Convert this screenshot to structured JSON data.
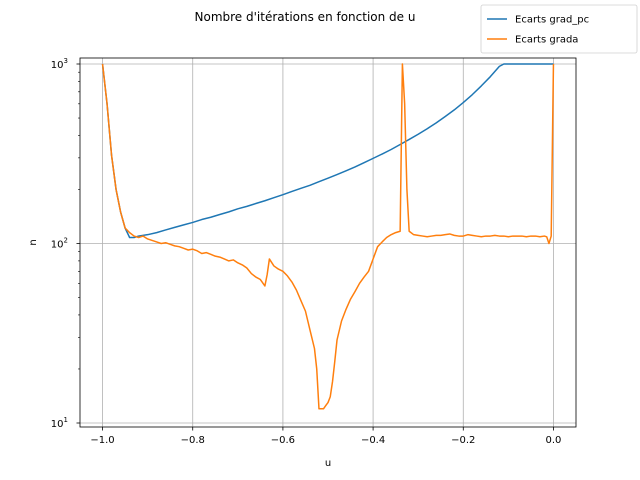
{
  "chart_data": {
    "type": "line",
    "title": "Nombre d'itérations en fonction de u",
    "xlabel": "u",
    "ylabel": "n",
    "xlim": [
      -1.05,
      0.05
    ],
    "ylim": [
      9.5,
      1080
    ],
    "yscale": "log",
    "grid": true,
    "legend_position": "top-right",
    "x_ticks": [
      -1.0,
      -0.8,
      -0.6,
      -0.4,
      -0.2,
      0.0
    ],
    "x_tick_labels": [
      "−1.0",
      "−0.8",
      "−0.6",
      "−0.4",
      "−0.2",
      "0.0"
    ],
    "y_ticks": [
      10,
      100,
      1000
    ],
    "y_tick_labels": [
      "10¹",
      "10²",
      "10³"
    ],
    "series": [
      {
        "name": "Ecarts grad_pc",
        "color": "#1f77b4",
        "x": [
          -1.0,
          -0.99,
          -0.98,
          -0.97,
          -0.96,
          -0.95,
          -0.94,
          -0.93,
          -0.92,
          -0.9,
          -0.88,
          -0.86,
          -0.84,
          -0.82,
          -0.8,
          -0.78,
          -0.76,
          -0.74,
          -0.72,
          -0.7,
          -0.68,
          -0.66,
          -0.64,
          -0.62,
          -0.6,
          -0.58,
          -0.56,
          -0.54,
          -0.52,
          -0.5,
          -0.48,
          -0.46,
          -0.44,
          -0.42,
          -0.4,
          -0.38,
          -0.36,
          -0.34,
          -0.32,
          -0.3,
          -0.28,
          -0.26,
          -0.24,
          -0.22,
          -0.2,
          -0.18,
          -0.16,
          -0.14,
          -0.12,
          -0.11,
          -0.1,
          -0.09,
          -0.08,
          -0.06,
          -0.04,
          -0.02,
          0.0
        ],
        "y": [
          1000,
          600,
          310,
          200,
          150,
          122,
          108,
          108,
          110,
          112,
          115,
          119,
          123,
          127,
          131,
          136,
          140,
          145,
          150,
          156,
          161,
          167,
          173,
          180,
          187,
          195,
          203,
          211,
          221,
          231,
          242,
          254,
          267,
          282,
          298,
          315,
          334,
          356,
          380,
          406,
          436,
          470,
          510,
          555,
          610,
          675,
          755,
          850,
          970,
          1000,
          1000,
          1000,
          1000,
          1000,
          1000,
          1000,
          1000
        ]
      },
      {
        "name": "Ecarts grada",
        "color": "#ff7f0e",
        "x": [
          -1.0,
          -0.99,
          -0.98,
          -0.97,
          -0.96,
          -0.95,
          -0.94,
          -0.93,
          -0.92,
          -0.91,
          -0.9,
          -0.89,
          -0.88,
          -0.87,
          -0.86,
          -0.85,
          -0.84,
          -0.83,
          -0.82,
          -0.81,
          -0.8,
          -0.79,
          -0.78,
          -0.77,
          -0.76,
          -0.75,
          -0.74,
          -0.73,
          -0.72,
          -0.71,
          -0.7,
          -0.69,
          -0.68,
          -0.67,
          -0.66,
          -0.65,
          -0.64,
          -0.635,
          -0.63,
          -0.62,
          -0.61,
          -0.6,
          -0.59,
          -0.58,
          -0.57,
          -0.56,
          -0.55,
          -0.54,
          -0.53,
          -0.525,
          -0.52,
          -0.515,
          -0.51,
          -0.505,
          -0.5,
          -0.495,
          -0.49,
          -0.485,
          -0.48,
          -0.47,
          -0.46,
          -0.45,
          -0.44,
          -0.43,
          -0.42,
          -0.41,
          -0.4,
          -0.39,
          -0.38,
          -0.37,
          -0.36,
          -0.35,
          -0.34,
          -0.335,
          -0.33,
          -0.325,
          -0.32,
          -0.31,
          -0.3,
          -0.29,
          -0.28,
          -0.27,
          -0.26,
          -0.25,
          -0.24,
          -0.23,
          -0.22,
          -0.21,
          -0.2,
          -0.19,
          -0.18,
          -0.17,
          -0.16,
          -0.15,
          -0.14,
          -0.13,
          -0.12,
          -0.11,
          -0.1,
          -0.09,
          -0.08,
          -0.07,
          -0.06,
          -0.05,
          -0.04,
          -0.03,
          -0.02,
          -0.015,
          -0.01,
          -0.005,
          0.0
        ],
        "y": [
          1000,
          600,
          310,
          200,
          150,
          122,
          115,
          110,
          108,
          110,
          106,
          104,
          102,
          100,
          101,
          99,
          97,
          96,
          94,
          92,
          93,
          91,
          88,
          89,
          87,
          85,
          84,
          82,
          80,
          81,
          78,
          76,
          73,
          68,
          65,
          63,
          58,
          67,
          82,
          75,
          72,
          70,
          66,
          61,
          55,
          48,
          42,
          33,
          26,
          20,
          12,
          12,
          12,
          12.5,
          13,
          14,
          17,
          22,
          29,
          37,
          43,
          49,
          54,
          60,
          65,
          70,
          82,
          96,
          102,
          108,
          112,
          115,
          117,
          1000,
          600,
          200,
          117,
          112,
          111,
          110,
          109,
          110,
          111,
          111,
          112,
          113,
          111,
          110,
          110,
          112,
          111,
          110,
          109,
          110,
          110,
          111,
          110,
          110,
          109,
          110,
          110,
          110,
          109,
          110,
          110,
          109,
          110,
          109,
          100,
          110,
          1000
        ]
      }
    ]
  }
}
